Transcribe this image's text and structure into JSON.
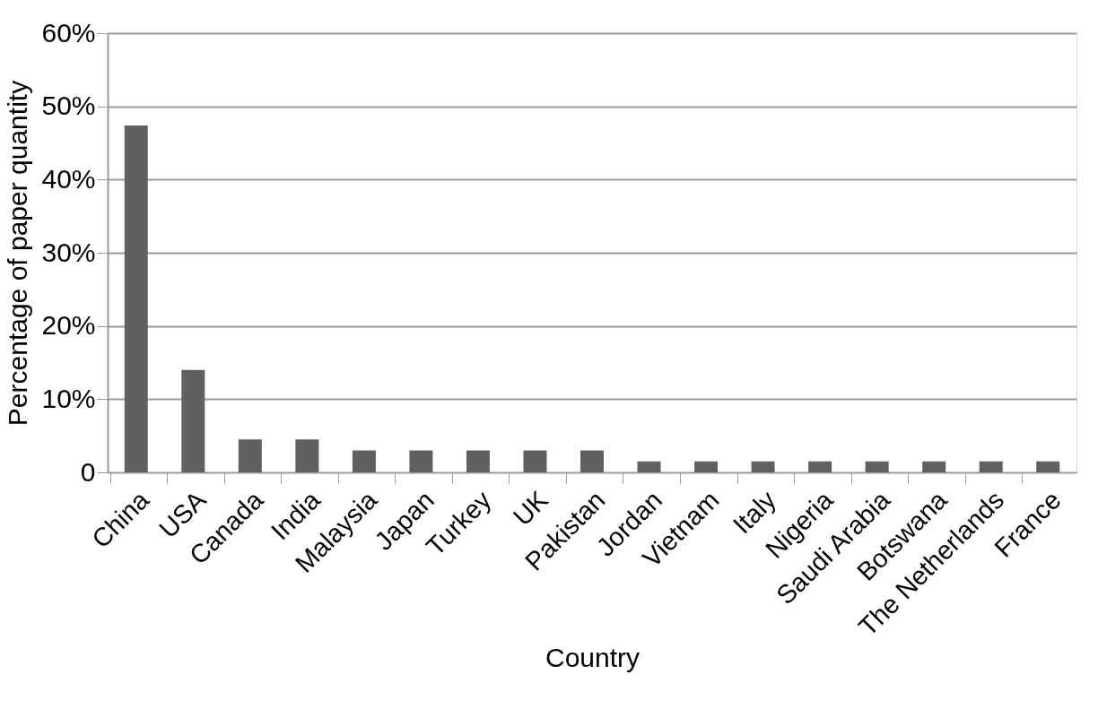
{
  "chart_data": {
    "type": "bar",
    "xlabel": "Country",
    "ylabel": "Percentage of paper quantity",
    "categories": [
      "China",
      "USA",
      "Canada",
      "India",
      "Malaysia",
      "Japan",
      "Turkey",
      "UK",
      "Pakistan",
      "Jordan",
      "Vietnam",
      "Italy",
      "Nigeria",
      "Saudi Arabia",
      "Botswana",
      "The Netherlands",
      "France"
    ],
    "values": [
      47.4,
      14.0,
      4.5,
      4.5,
      3.0,
      3.0,
      3.0,
      3.0,
      3.0,
      1.5,
      1.5,
      1.5,
      1.5,
      1.5,
      1.5,
      1.5,
      1.5
    ],
    "color": "#5f6062",
    "ylim": [
      0,
      60
    ],
    "yticks": [
      0,
      {
        "value": 10,
        "label": "10%"
      },
      {
        "value": 20,
        "label": "20%"
      },
      {
        "value": 30,
        "label": "30%"
      },
      {
        "value": 40,
        "label": "40%"
      },
      {
        "value": 50,
        "label": "50%"
      },
      {
        "value": 60,
        "label": "60%"
      }
    ],
    "grid": "y"
  }
}
